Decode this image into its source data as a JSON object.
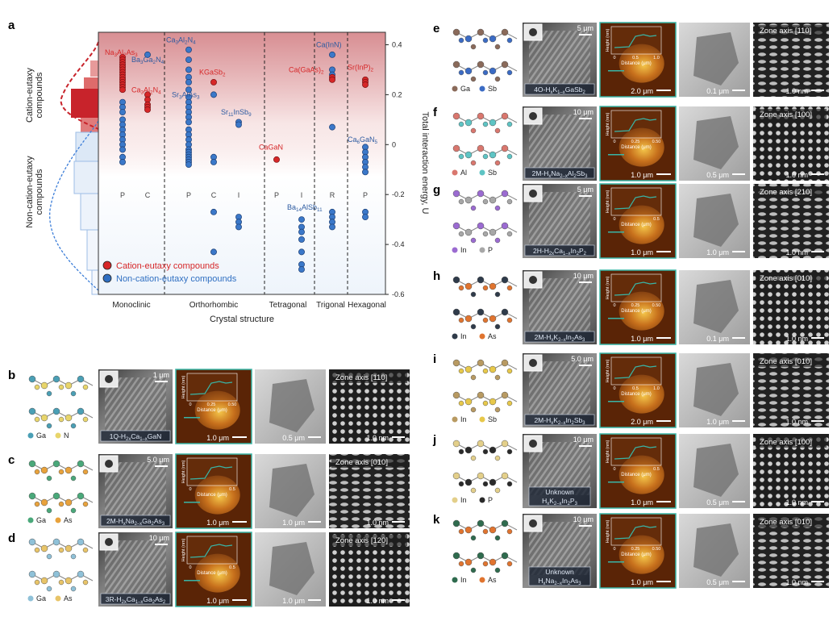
{
  "panel_a": {
    "label": "a",
    "left_top_label": "Cation-eutaxy compounds",
    "left_bottom_label": "Non-cation-eutaxy compounds",
    "x_title": "Crystal structure",
    "y_title": "Total interaction energy, U",
    "legend": [
      "Cation-eutaxy compounds",
      "Non-cation-eutaxy compounds"
    ],
    "colors": {
      "red": "#d62728",
      "blue": "#2f6fc2"
    }
  },
  "chart_data": {
    "type": "scatter",
    "title": "",
    "xlabel": "Crystal structure",
    "ylabel": "Total interaction energy, U",
    "ylim": [
      -0.6,
      0.45
    ],
    "yticks": [
      "0.4",
      "0.2",
      "0",
      "-0.2",
      "-0.4",
      "-0.6"
    ],
    "groups": [
      "Monoclinic",
      "Orthorhombic",
      "Tetragonal",
      "Trigonal",
      "Hexagonal"
    ],
    "columns": [
      {
        "group": "Monoclinic",
        "code": "P",
        "red": [
          0.35,
          0.34,
          0.33,
          0.32,
          0.31,
          0.3,
          0.29,
          0.28,
          0.27,
          0.26,
          0.25,
          0.24,
          0.23,
          0.22
        ],
        "blue": [
          0.17,
          0.15,
          0.13,
          0.1,
          0.08,
          0.06,
          0.04,
          0.02,
          0.0,
          -0.02,
          -0.05,
          -0.07
        ]
      },
      {
        "group": "Monoclinic",
        "code": "C",
        "red": [
          0.2,
          0.18,
          0.16,
          0.15,
          0.14
        ],
        "blue": [
          0.36
        ]
      },
      {
        "group": "Orthorhombic",
        "code": "P",
        "red": [],
        "blue": [
          0.38,
          0.34,
          0.3,
          0.27,
          0.25,
          0.22,
          0.19,
          0.17,
          0.15,
          0.13,
          0.11,
          0.09,
          0.06,
          0.04,
          0.02,
          0.0,
          -0.02,
          -0.03,
          -0.04,
          -0.05,
          -0.06,
          -0.07,
          -0.08
        ]
      },
      {
        "group": "Orthorhombic",
        "code": "C",
        "red": [
          0.25
        ],
        "blue": [
          0.2,
          -0.05,
          -0.07,
          -0.27,
          -0.43
        ]
      },
      {
        "group": "Orthorhombic",
        "code": "I",
        "red": [],
        "blue": [
          0.09,
          0.08,
          -0.29,
          -0.31,
          -0.33
        ]
      },
      {
        "group": "Tetragonal",
        "code": "P",
        "red": [
          -0.06
        ],
        "blue": []
      },
      {
        "group": "Tetragonal",
        "code": "I",
        "red": [],
        "blue": [
          -0.3,
          -0.33,
          -0.35,
          -0.38,
          -0.43,
          -0.48,
          -0.5
        ]
      },
      {
        "group": "Trigonal",
        "code": "R",
        "red": [
          0.27,
          0.26
        ],
        "blue": [
          0.36,
          0.3,
          0.28,
          0.07,
          -0.27,
          -0.29,
          -0.31,
          -0.33
        ]
      },
      {
        "group": "Hexagonal",
        "code": "P",
        "red": [
          0.26,
          0.25,
          0.24
        ],
        "blue": [
          -0.01,
          -0.03,
          -0.05,
          -0.07,
          -0.09,
          -0.11,
          -0.27,
          -0.29
        ]
      }
    ],
    "annotations": [
      {
        "text": "Na3Al2As3",
        "color": "red",
        "column": 0,
        "y": 0.36
      },
      {
        "text": "Ba3Ga2N4",
        "color": "blue",
        "column": 1,
        "y": 0.33
      },
      {
        "text": "Ca3Al2N4",
        "color": "red",
        "column": 1,
        "y": 0.21
      },
      {
        "text": "Ca3Al2N4",
        "color": "blue",
        "column": 2,
        "y": 0.41
      },
      {
        "text": "KGaSb2",
        "color": "red",
        "column": 3,
        "y": 0.28
      },
      {
        "text": "Sr3AlAs3",
        "color": "blue",
        "column": 3,
        "y": 0.19
      },
      {
        "text": "Sr11InSb9",
        "color": "blue",
        "column": 4,
        "y": 0.12
      },
      {
        "text": "CaGaN",
        "color": "red",
        "column": 5,
        "y": -0.02
      },
      {
        "text": "Ba14AlSb11",
        "color": "blue",
        "column": 6,
        "y": -0.26
      },
      {
        "text": "Ca(InN)",
        "color": "blue",
        "column": 7,
        "y": 0.39
      },
      {
        "text": "Ca(GaAs)2",
        "color": "red",
        "column": 7,
        "y": 0.29
      },
      {
        "text": "Sr(InP)2",
        "color": "red",
        "column": 8,
        "y": 0.3
      },
      {
        "text": "Ca6GaN5",
        "color": "blue",
        "column": 8,
        "y": 0.01
      }
    ]
  },
  "rows": [
    {
      "label": "b",
      "atoms": [
        "Ga",
        "N"
      ],
      "atom_colors": [
        "#4a9fb5",
        "#e8d56b"
      ],
      "sem_scale": "1 μm",
      "compound": "1Q-H2xCa1–xGaN",
      "afm_scale": "1.0 μm",
      "afm_ticks": [
        "0",
        "0.25",
        "0.50"
      ],
      "tem_scale": "0.5 μm",
      "zone": "Zone axis [110]",
      "hr_scale": "1.0 nm"
    },
    {
      "label": "c",
      "atoms": [
        "Ga",
        "As"
      ],
      "atom_colors": [
        "#4aa87a",
        "#e8a23c"
      ],
      "sem_scale": "5.0 μm",
      "compound": "2M-HxNa2–xGa2As3",
      "afm_scale": "1.0 μm",
      "afm_ticks": [
        "0",
        "0.5"
      ],
      "tem_scale": "1.0 μm",
      "zone": "Zone axis [010]",
      "hr_scale": "1.0 nm"
    },
    {
      "label": "d",
      "atoms": [
        "Ga",
        "As"
      ],
      "atom_colors": [
        "#8fc1d8",
        "#e8c468"
      ],
      "sem_scale": "10 μm",
      "compound": "3R-H2xCa1–xGa2As2",
      "afm_scale": "1.0 μm",
      "afm_ticks": [
        "0",
        "0.5"
      ],
      "tem_scale": "1.0 μm",
      "zone": "Zone axis [120]",
      "hr_scale": "1.0 nm"
    },
    {
      "label": "e",
      "atoms": [
        "Ga",
        "Sb"
      ],
      "atom_colors": [
        "#8a6a5a",
        "#3b6bc4"
      ],
      "sem_scale": "5 μm",
      "compound": "4O-HxK1–xGaSb2",
      "afm_scale": "2.0 μm",
      "afm_ticks": [
        "0",
        "0.5",
        "1.0"
      ],
      "tem_scale": "0.1 μm",
      "zone": "Zone axis [110]",
      "hr_scale": "1.0 nm"
    },
    {
      "label": "f",
      "atoms": [
        "Al",
        "Sb"
      ],
      "atom_colors": [
        "#d9776e",
        "#5ec4c4"
      ],
      "sem_scale": "10 μm",
      "compound": "2M-HxNa2–xAl2Sb3",
      "afm_scale": "1.0 μm",
      "afm_ticks": [
        "0",
        "0.25",
        "0.50"
      ],
      "tem_scale": "0.5 μm",
      "zone": "Zone axis [100]",
      "hr_scale": "1.0 nm"
    },
    {
      "label": "g",
      "atoms": [
        "In",
        "P"
      ],
      "atom_colors": [
        "#9b6bd1",
        "#a7a7a7"
      ],
      "sem_scale": "5 μm",
      "compound": "2H-H2xCa1–xIn2P2",
      "afm_scale": "1.0 μm",
      "afm_ticks": [
        "0",
        "0.5"
      ],
      "tem_scale": "1.0 μm",
      "zone": "Zone axis [210]",
      "hr_scale": "1.0 nm"
    },
    {
      "label": "h",
      "atoms": [
        "In",
        "As"
      ],
      "atom_colors": [
        "#2f3b4a",
        "#e0742f"
      ],
      "sem_scale": "10 μm",
      "compound": "2M-HxK2–xIn2As3",
      "afm_scale": "1.0 μm",
      "afm_ticks": [
        "0",
        "0.25",
        "0.50"
      ],
      "tem_scale": "0.1 μm",
      "zone": "Zone axis [010]",
      "hr_scale": "1.0 nm"
    },
    {
      "label": "i",
      "atoms": [
        "In",
        "Sb"
      ],
      "atom_colors": [
        "#b89a62",
        "#e7c84a"
      ],
      "sem_scale": "5.0 μm",
      "compound": "2M-HxK2–xIn2Sb3",
      "afm_scale": "2.0 μm",
      "afm_ticks": [
        "0",
        "0.5",
        "1.0"
      ],
      "tem_scale": "1.0 μm",
      "zone": "Zone axis [010]",
      "hr_scale": "1.0 nm"
    },
    {
      "label": "j",
      "atoms": [
        "In",
        "P"
      ],
      "atom_colors": [
        "#e3cf8a",
        "#2a2a2a"
      ],
      "sem_scale": "10 μm",
      "compound_lines": [
        "Unknown",
        "HxK2–xIn2P3"
      ],
      "afm_scale": "1.0 μm",
      "afm_ticks": [
        "0",
        "0.5"
      ],
      "tem_scale": "0.5 μm",
      "zone": "Zone axis [100]",
      "hr_scale": "1.0 nm"
    },
    {
      "label": "k",
      "atoms": [
        "In",
        "As"
      ],
      "atom_colors": [
        "#2f6b4e",
        "#e0742f"
      ],
      "sem_scale": "10 μm",
      "compound_lines": [
        "Unknown",
        "HxNa2–xIn2As3"
      ],
      "afm_scale": "1.0 μm",
      "afm_ticks": [
        "0",
        "0.25",
        "0.50"
      ],
      "tem_scale": "0.5 μm",
      "zone": "Zone axis [010]",
      "hr_scale": "1.0 nm"
    }
  ],
  "afm_common": {
    "y_label": "Height (nm)",
    "x_label": "Distance (μm)"
  }
}
